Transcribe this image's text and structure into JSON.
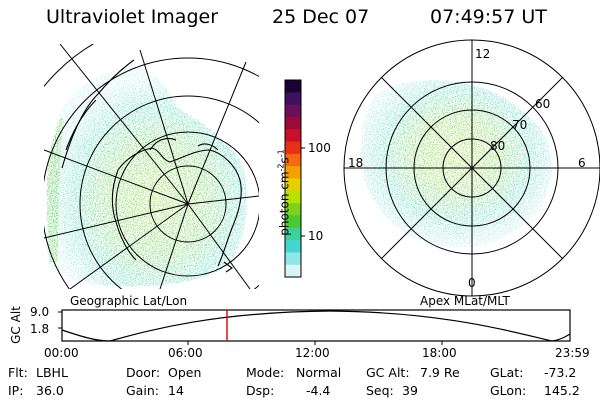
{
  "header": {
    "instrument": "Ultraviolet Imager",
    "date": "25 Dec 07",
    "time": "07:49:57 UT"
  },
  "colorbar": {
    "unit_label": "photon cm",
    "unit_sup1": "-2",
    "unit_mid": "s",
    "unit_sup2": "-1",
    "ticks": [
      "100",
      "10"
    ],
    "colors": [
      "#1a0033",
      "#3d1060",
      "#6a0f5a",
      "#9a0a3a",
      "#c8102a",
      "#e83018",
      "#f56a10",
      "#f5a000",
      "#e8d000",
      "#b8e000",
      "#7ed21e",
      "#4cc832",
      "#3cd29e",
      "#42d6d0",
      "#8ee6e6",
      "#d9f4f4"
    ]
  },
  "left_panel": {
    "caption": "Geographic Lat/Lon"
  },
  "right_panel": {
    "caption": "Apex MLat/MLT",
    "mlt_labels": {
      "top": "12",
      "left": "18",
      "right": "6",
      "bottom": "0"
    },
    "mlat_labels": [
      "60",
      "70",
      "80"
    ]
  },
  "orbit": {
    "axis_label": "GC Alt",
    "y_ticks": [
      "9.0",
      "1.8"
    ],
    "x_ticks": [
      "00:00",
      "06:00",
      "12:00",
      "18:00",
      "23:59"
    ],
    "current_marker_color": "#dd0000"
  },
  "info": {
    "flt_label": "Flt:",
    "flt_value": "LBHL",
    "ip_label": "IP:",
    "ip_value": "36.0",
    "door_label": "Door:",
    "door_value": "Open",
    "gain_label": "Gain:",
    "gain_value": "14",
    "mode_label": "Mode:",
    "mode_value": "Normal",
    "dsp_label": "Dsp:",
    "dsp_value": "-4.4",
    "gcalt_label": "GC Alt:",
    "gcalt_value": "7.9 Re",
    "seq_label": "Seq:",
    "seq_value": "39",
    "glat_label": "GLat:",
    "glat_value": "-73.2",
    "glon_label": "GLon:",
    "glon_value": "145.2"
  }
}
